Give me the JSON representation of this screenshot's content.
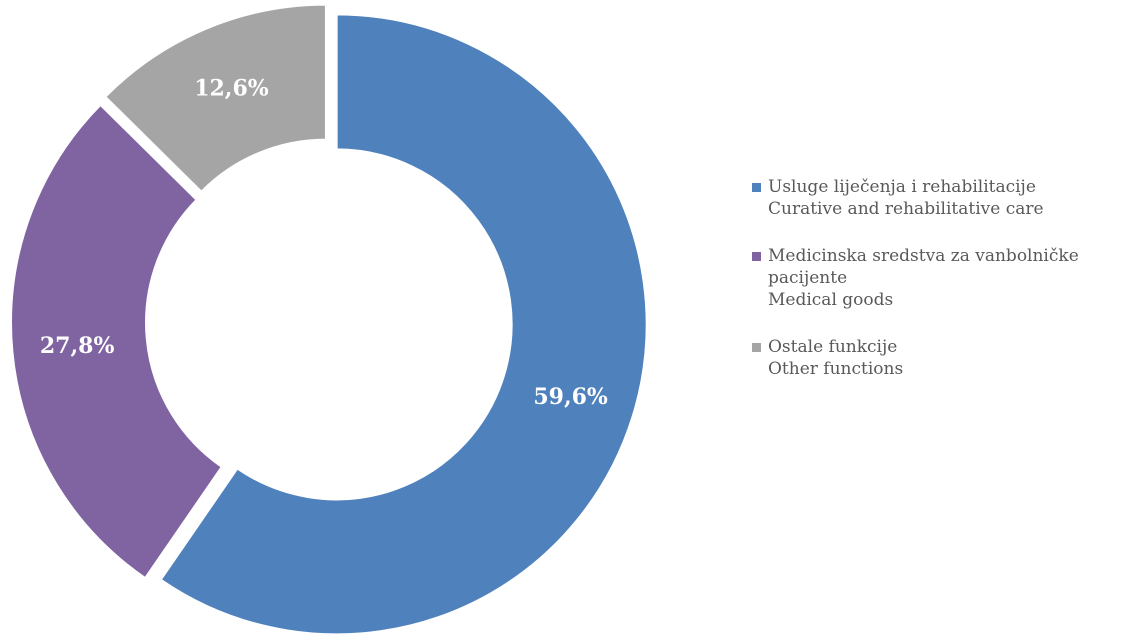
{
  "chart_data": {
    "type": "pie",
    "style": "donut",
    "title": "",
    "slices": [
      {
        "value": 59.6,
        "label": "59,6%",
        "color": "#4F81BD",
        "legend": [
          "Usluge liječenja i rehabilitacije",
          "Curative and rehabilitative care"
        ]
      },
      {
        "value": 27.8,
        "label": "27,8%",
        "color": "#8064A2",
        "legend": [
          "Medicinska sredstva za vanbolničke",
          "pacijente",
          "Medical goods"
        ]
      },
      {
        "value": 12.6,
        "label": "12,6%",
        "color": "#A5A5A5",
        "legend": [
          "Ostale funkcije",
          "Other functions"
        ]
      }
    ],
    "legend_position": "right"
  }
}
